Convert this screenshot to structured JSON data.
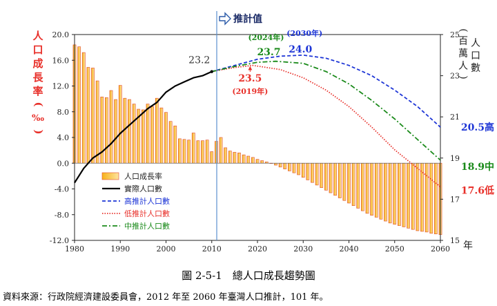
{
  "chart_data": {
    "type": "bar-line",
    "left_axis": {
      "label": "人口成長率(‰)",
      "range": [
        -12,
        20
      ],
      "ticks": [
        "20.0",
        "16.0",
        "12.0",
        "8.0",
        "4.0",
        "0.0",
        "-4.0",
        "-8.0",
        "-12.0"
      ],
      "color": "#e8302a"
    },
    "right_axis": {
      "label_1": "人口數",
      "label_2": "(百萬人)",
      "range": [
        15,
        25
      ],
      "ticks": [
        "25",
        "23",
        "21",
        "19",
        "17",
        "15"
      ]
    },
    "x_axis": {
      "range": [
        1980,
        2060
      ],
      "ticks": [
        "1980",
        "1990",
        "2000",
        "2010",
        "2020",
        "2030",
        "2040",
        "2050",
        "2060"
      ],
      "unit": "年"
    },
    "projection_label": "推計值",
    "projection_start": 2011,
    "growth_rate": {
      "name": "人口成長率",
      "years": [
        1980,
        1981,
        1982,
        1983,
        1984,
        1985,
        1986,
        1987,
        1988,
        1989,
        1990,
        1991,
        1992,
        1993,
        1994,
        1995,
        1996,
        1997,
        1998,
        1999,
        2000,
        2001,
        2002,
        2003,
        2004,
        2005,
        2006,
        2007,
        2008,
        2009,
        2010,
        2011,
        2012,
        2013,
        2014,
        2015,
        2016,
        2017,
        2018,
        2019,
        2020,
        2021,
        2022,
        2023,
        2024,
        2025,
        2026,
        2027,
        2028,
        2029,
        2030,
        2031,
        2032,
        2033,
        2034,
        2035,
        2036,
        2037,
        2038,
        2039,
        2040,
        2041,
        2042,
        2043,
        2044,
        2045,
        2046,
        2047,
        2048,
        2049,
        2050,
        2051,
        2052,
        2053,
        2054,
        2055,
        2056,
        2057,
        2058,
        2059,
        2060
      ],
      "values": [
        18.4,
        18.1,
        17.2,
        14.9,
        14.8,
        12.8,
        10.3,
        10.2,
        11.3,
        9.9,
        12.1,
        10.1,
        9.9,
        9.2,
        8.4,
        8.3,
        9.2,
        8.8,
        10.1,
        8.6,
        7.9,
        6.5,
        5.8,
        3.8,
        3.7,
        3.6,
        4.7,
        3.5,
        3.5,
        3.6,
        1.8,
        3.4,
        4.0,
        2.4,
        1.9,
        1.7,
        1.6,
        1.3,
        1.1,
        0.9,
        0.6,
        0.4,
        0.2,
        0.0,
        -0.3,
        -0.6,
        -0.9,
        -1.2,
        -1.5,
        -1.8,
        -2.2,
        -2.6,
        -3.0,
        -3.4,
        -3.8,
        -4.2,
        -4.6,
        -5.0,
        -5.4,
        -5.8,
        -6.2,
        -6.6,
        -7.0,
        -7.4,
        -7.8,
        -8.1,
        -8.4,
        -8.7,
        -9.0,
        -9.3,
        -9.5,
        -9.7,
        -9.9,
        -10.1,
        -10.3,
        -10.5,
        -10.6,
        -10.7,
        -10.9,
        -11.0,
        -11.1
      ],
      "color": "#f5a300"
    },
    "actual_population": {
      "name": "實際人口數",
      "years": [
        1980,
        1982,
        1984,
        1986,
        1988,
        1990,
        1992,
        1994,
        1996,
        1998,
        2000,
        2002,
        2004,
        2006,
        2008,
        2010
      ],
      "values": [
        17.8,
        18.5,
        19.0,
        19.3,
        19.7,
        20.2,
        20.6,
        21.0,
        21.4,
        21.7,
        22.2,
        22.5,
        22.7,
        22.9,
        23.0,
        23.2
      ],
      "color": "#000000"
    },
    "high_projection": {
      "name": "高推計人口數",
      "years": [
        2010,
        2015,
        2020,
        2025,
        2030,
        2035,
        2040,
        2045,
        2050,
        2055,
        2060
      ],
      "values": [
        23.2,
        23.5,
        23.8,
        23.95,
        24.0,
        23.85,
        23.5,
        23.0,
        22.3,
        21.5,
        20.5
      ],
      "color": "#1d35d6"
    },
    "low_projection": {
      "name": "低推計人口數",
      "years": [
        2010,
        2015,
        2019,
        2025,
        2030,
        2035,
        2040,
        2045,
        2050,
        2055,
        2060
      ],
      "values": [
        23.2,
        23.4,
        23.5,
        23.3,
        22.9,
        22.3,
        21.5,
        20.5,
        19.4,
        18.5,
        17.6
      ],
      "color": "#e8302a"
    },
    "medium_projection": {
      "name": "中推計人口數",
      "years": [
        2010,
        2015,
        2020,
        2024,
        2030,
        2035,
        2040,
        2045,
        2050,
        2055,
        2060
      ],
      "values": [
        23.2,
        23.45,
        23.65,
        23.7,
        23.6,
        23.2,
        22.6,
        21.8,
        20.9,
        19.9,
        18.9
      ],
      "color": "#1a8a1a"
    },
    "annotations": [
      {
        "id": "start",
        "text": "23.2",
        "color": "#333333"
      },
      {
        "id": "med_peak",
        "text": "23.7",
        "color": "#1a8a1a"
      },
      {
        "id": "med_year",
        "text": "(2024年)",
        "color": "#1a8a1a"
      },
      {
        "id": "high_peak",
        "text": "24.0",
        "color": "#1d35d6"
      },
      {
        "id": "high_year",
        "text": "(2030年)",
        "color": "#1d35d6"
      },
      {
        "id": "low_peak",
        "text": "23.5",
        "color": "#e8302a"
      },
      {
        "id": "low_year",
        "text": "(2019年)",
        "color": "#e8302a"
      },
      {
        "id": "high_end",
        "text": "20.5高",
        "color": "#1d35d6"
      },
      {
        "id": "med_end",
        "text": "18.9中",
        "color": "#1a8a1a"
      },
      {
        "id": "low_end",
        "text": "17.6低",
        "color": "#e8302a"
      }
    ],
    "legend": {
      "position": "bottom-left",
      "entries": [
        "人口成長率",
        "實際人口數",
        "高推計人口數",
        "低推計人口數",
        "中推計人口數"
      ]
    },
    "grid": false
  },
  "caption": "圖 2-5-1　總人口成長趨勢圖",
  "source": "資料來源：行政院經濟建設委員會，2012 年至 2060 年臺灣人口推計，101 年。"
}
